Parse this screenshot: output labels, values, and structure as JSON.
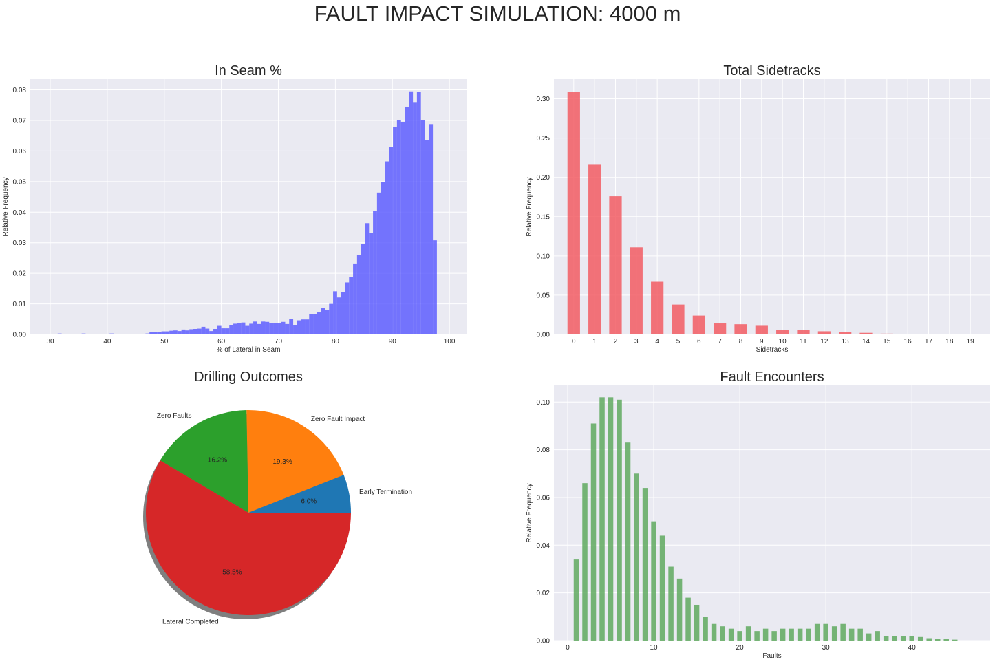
{
  "title": "FAULT IMPACT SIMULATION: 4000 m",
  "colors": {
    "panel_bg": "#eaeaf2",
    "grid": "#ffffff",
    "hist": "#5555ff",
    "sidetracks": "#f25c63",
    "faults": "#5fa95f",
    "pie": [
      "#1f77b4",
      "#ff7f0e",
      "#2ca02c",
      "#d62728"
    ]
  },
  "chart_data": [
    {
      "type": "bar",
      "subtype": "histogram",
      "title": "In Seam %",
      "xlabel": "% of Lateral in Seam",
      "ylabel": "Relative Frequency",
      "xlim": [
        26.5,
        103
      ],
      "ylim": [
        0,
        0.0835
      ],
      "xticks": [
        30,
        40,
        50,
        60,
        70,
        80,
        90,
        100
      ],
      "yticks": [
        0,
        0.01,
        0.02,
        0.03,
        0.04,
        0.05,
        0.06,
        0.07,
        0.08
      ],
      "ytick_labels": [
        "0.00",
        "0.01",
        "0.02",
        "0.03",
        "0.04",
        "0.05",
        "0.06",
        "0.07",
        "0.08"
      ],
      "grid": true,
      "bin_start": 29.9,
      "bin_width": 0.7,
      "values": [
        0.0001,
        0.0001,
        0.0003,
        0.0002,
        0,
        0.0002,
        0,
        0,
        0.0003,
        0,
        0,
        0,
        0,
        0,
        0.0002,
        0.0003,
        0.0001,
        0,
        0.0002,
        0.0001,
        0.0002,
        0.0001,
        0.0002,
        0,
        0.0003,
        0.0008,
        0.0008,
        0.0008,
        0.001,
        0.001,
        0.0012,
        0.0013,
        0.0011,
        0.0016,
        0.0013,
        0.0017,
        0.0018,
        0.0019,
        0.0025,
        0.0019,
        0.0011,
        0.0018,
        0.0028,
        0.002,
        0.002,
        0.0031,
        0.0035,
        0.0037,
        0.0039,
        0.0028,
        0.0035,
        0.0042,
        0.0034,
        0.0042,
        0.0041,
        0.0037,
        0.0037,
        0.0037,
        0.0041,
        0.0034,
        0.0051,
        0.0031,
        0.0046,
        0.0049,
        0.0049,
        0.0066,
        0.0066,
        0.0072,
        0.0086,
        0.008,
        0.01,
        0.0141,
        0.0121,
        0.0138,
        0.017,
        0.0188,
        0.0232,
        0.0261,
        0.0296,
        0.0364,
        0.0333,
        0.0405,
        0.0464,
        0.0499,
        0.0566,
        0.0614,
        0.0678,
        0.07,
        0.0695,
        0.0745,
        0.0795,
        0.076,
        0.0793,
        0.0701,
        0.0635,
        0.0688,
        0.0308
      ]
    },
    {
      "type": "bar",
      "title": "Total Sidetracks",
      "xlabel": "Sidetracks",
      "ylabel": "Relative Frequency",
      "categories": [
        "0",
        "1",
        "2",
        "3",
        "4",
        "5",
        "6",
        "7",
        "8",
        "9",
        "10",
        "11",
        "12",
        "13",
        "14",
        "15",
        "16",
        "17",
        "18",
        "19"
      ],
      "values": [
        0.309,
        0.216,
        0.176,
        0.111,
        0.067,
        0.038,
        0.024,
        0.014,
        0.013,
        0.011,
        0.006,
        0.006,
        0.004,
        0.003,
        0.002,
        0.001,
        0.0008,
        0.0008,
        0.0006,
        0.0005
      ],
      "ylim": [
        0,
        0.325
      ],
      "yticks": [
        0,
        0.05,
        0.1,
        0.15,
        0.2,
        0.25,
        0.3
      ],
      "ytick_labels": [
        "0.00",
        "0.05",
        "0.10",
        "0.15",
        "0.20",
        "0.25",
        "0.30"
      ],
      "grid": true
    },
    {
      "type": "pie",
      "title": "Drilling Outcomes",
      "labels": [
        "Early Termination",
        "Zero Fault Impact",
        "Zero Faults",
        "Lateral Completed"
      ],
      "values": [
        6.0,
        19.3,
        16.2,
        58.5
      ],
      "autopct": [
        "6.0%",
        "19.3%",
        "16.2%",
        "58.5%"
      ],
      "shadow": true,
      "start_angle": 0
    },
    {
      "type": "bar",
      "title": "Fault Encounters",
      "xlabel": "Faults",
      "ylabel": "Relative Frequency",
      "x": [
        1,
        2,
        3,
        4,
        5,
        6,
        7,
        8,
        9,
        10,
        11,
        12,
        13,
        14,
        15,
        16,
        17,
        18,
        19,
        20,
        21,
        22,
        23,
        24,
        25,
        26,
        27,
        28,
        29,
        30,
        31,
        32,
        33,
        34,
        35,
        36,
        37,
        38,
        39,
        40,
        41,
        42,
        43,
        44,
        45
      ],
      "values": [
        0.034,
        0.066,
        0.091,
        0.102,
        0.102,
        0.101,
        0.083,
        0.07,
        0.064,
        0.05,
        0.044,
        0.031,
        0.026,
        0.018,
        0.015,
        0.01,
        0.007,
        0.006,
        0.005,
        0.004,
        0.006,
        0.004,
        0.005,
        0.004,
        0.005,
        0.005,
        0.005,
        0.005,
        0.007,
        0.007,
        0.006,
        0.007,
        0.005,
        0.005,
        0.003,
        0.004,
        0.002,
        0.002,
        0.002,
        0.002,
        0.0015,
        0.001,
        0.0008,
        0.0007,
        0.0004
      ],
      "xlim": [
        -1.6,
        49.1
      ],
      "ylim": [
        0,
        0.107
      ],
      "xticks": [
        0,
        10,
        20,
        30,
        40
      ],
      "yticks": [
        0,
        0.02,
        0.04,
        0.06,
        0.08,
        0.1
      ],
      "ytick_labels": [
        "0.00",
        "0.02",
        "0.04",
        "0.06",
        "0.08",
        "0.10"
      ],
      "grid": true
    }
  ]
}
